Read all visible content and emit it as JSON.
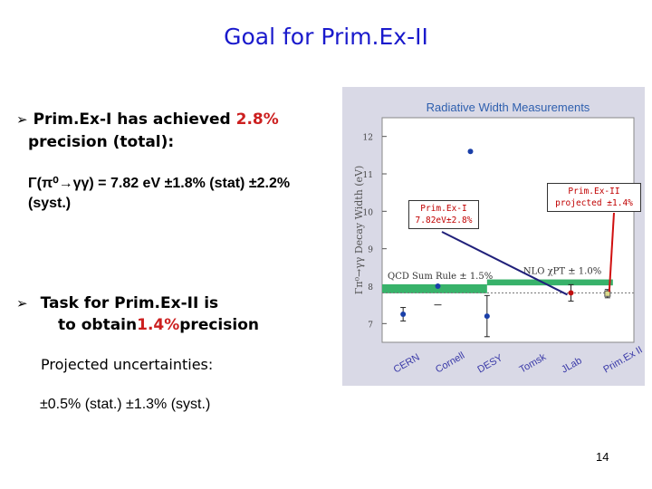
{
  "title": "Goal for Prim.Ex-II",
  "bullet1": {
    "text_before": "Prim.Ex-I has achieved ",
    "highlight": "2.8%",
    "line2": "precision (total):"
  },
  "formula": {
    "line1": "Γ(π⁰→γγ) = 7.82 eV ±1.8% (stat) ±2.2%",
    "line2": "(syst.)"
  },
  "bullet2": {
    "line1": "Task for Prim.Ex-II is",
    "line2_before": "to obtain ",
    "highlight": "1.4%",
    "line2_after": " precision"
  },
  "projected_label": "Projected uncertainties:",
  "projected_values": "±0.5% (stat.) ±1.3% (syst.)",
  "page_number": "14",
  "chart_data": {
    "type": "scatter",
    "title": "Radiative Width Measurements",
    "ylabel": "Γπ⁰→γγ Decay Width (eV)",
    "ylim": [
      6.5,
      12.5
    ],
    "yticks": [
      7,
      8,
      9,
      10,
      11,
      12
    ],
    "categories": [
      "CERN",
      "Cornell",
      "DESY",
      "Tomsk",
      "JLab",
      "Prim.Ex II"
    ],
    "points": [
      {
        "category": "CERN",
        "y": 7.25,
        "err": 0.18
      },
      {
        "category": "Cornell",
        "y": 8.0,
        "err": 0.0,
        "upper_limit": 7.5
      },
      {
        "category": "Cornell",
        "y": 11.6,
        "err": 0.0
      },
      {
        "category": "DESY",
        "y": 7.2,
        "err": 0.55
      },
      {
        "category": "JLab",
        "y": 7.82,
        "err": 0.22
      },
      {
        "category": "Prim.Ex II",
        "y": 7.8,
        "err": 0.11
      }
    ],
    "bands": [
      {
        "label": "QCD Sum Rule ± 1.5%",
        "y": 7.93,
        "halfwidth": 0.12,
        "x_from": 0,
        "x_to": 2.5
      },
      {
        "label": "NLO χPT ± 1.0%",
        "y": 8.1,
        "halfwidth": 0.08,
        "x_from": 2.5,
        "x_to": 5.5
      }
    ],
    "reference_line": 7.82,
    "annotations": [
      {
        "line1": "Prim.Ex-I",
        "line2": "7.82eV±2.8%"
      },
      {
        "line1": "Prim.Ex-II",
        "line2": "projected ±1.4%"
      }
    ],
    "colors": {
      "points": "#1a3fa8",
      "jlab": "#c01010",
      "band": "#38b26a",
      "title": "#2e5fae"
    }
  }
}
